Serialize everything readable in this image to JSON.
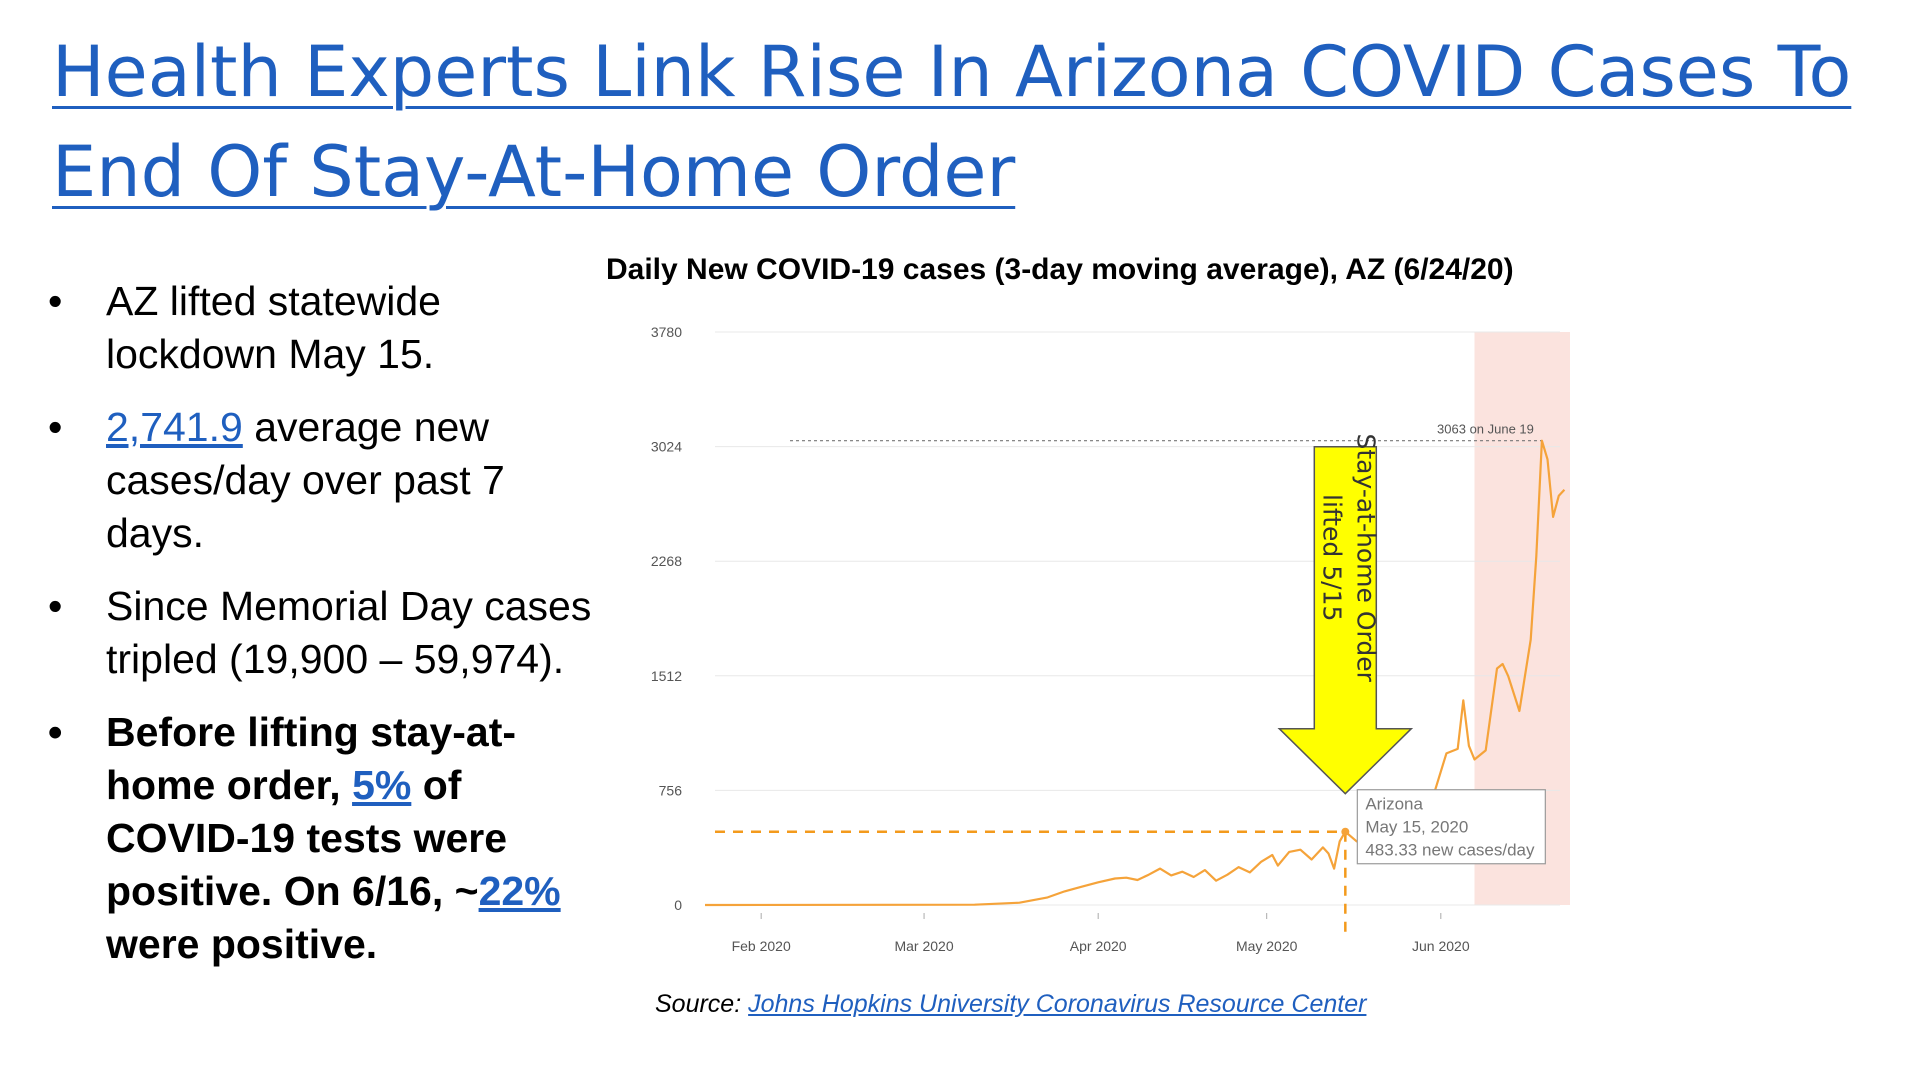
{
  "slide": {
    "title": "Health Experts Link Rise In Arizona COVID Cases To End Of Stay-At-Home Order",
    "bullets": [
      {
        "parts": [
          {
            "text": "AZ lifted statewide lockdown May 15."
          }
        ]
      },
      {
        "parts": [
          {
            "text": "2,741.9",
            "link": true
          },
          {
            "text": " average new cases/day over past 7 days."
          }
        ]
      },
      {
        "parts": [
          {
            "text": "Since Memorial Day cases tripled (19,900 – 59,974)."
          }
        ]
      },
      {
        "bold": true,
        "parts": [
          {
            "text": "Before lifting stay-at-home order, "
          },
          {
            "text": "5%",
            "link": true
          },
          {
            "text": " of COVID-19 tests were positive. On 6/16, ~"
          },
          {
            "text": "22%",
            "link": true
          },
          {
            "text": " were positive."
          }
        ]
      }
    ],
    "source_prefix": "Source:",
    "source_link": "Johns Hopkins University Coronavirus Resource Center"
  },
  "chart_data": {
    "type": "line",
    "title": "Daily New COVID-19 cases (3-day moving average), AZ (6/24/20)",
    "xlabel": "",
    "ylabel": "",
    "y_ticks": [
      0,
      756,
      1512,
      2268,
      3024,
      3780
    ],
    "ylim": [
      0,
      3780
    ],
    "x_range": [
      "2020-01-22",
      "2020-06-24"
    ],
    "x_ticks": [
      {
        "date": "2020-02-01",
        "label": "Feb 2020"
      },
      {
        "date": "2020-03-01",
        "label": "Mar 2020"
      },
      {
        "date": "2020-04-01",
        "label": "Apr 2020"
      },
      {
        "date": "2020-05-01",
        "label": "May 2020"
      },
      {
        "date": "2020-06-01",
        "label": "Jun 2020"
      }
    ],
    "grid": true,
    "series": [
      {
        "color": "#f5a33a",
        "points": [
          [
            "2020-01-22",
            0
          ],
          [
            "2020-03-10",
            2
          ],
          [
            "2020-03-18",
            15
          ],
          [
            "2020-03-23",
            50
          ],
          [
            "2020-03-26",
            90
          ],
          [
            "2020-03-29",
            120
          ],
          [
            "2020-04-01",
            150
          ],
          [
            "2020-04-04",
            175
          ],
          [
            "2020-04-06",
            180
          ],
          [
            "2020-04-08",
            165
          ],
          [
            "2020-04-10",
            200
          ],
          [
            "2020-04-12",
            240
          ],
          [
            "2020-04-14",
            195
          ],
          [
            "2020-04-16",
            220
          ],
          [
            "2020-04-18",
            185
          ],
          [
            "2020-04-20",
            230
          ],
          [
            "2020-04-22",
            160
          ],
          [
            "2020-04-24",
            200
          ],
          [
            "2020-04-26",
            250
          ],
          [
            "2020-04-28",
            215
          ],
          [
            "2020-04-30",
            285
          ],
          [
            "2020-05-02",
            330
          ],
          [
            "2020-05-03",
            260
          ],
          [
            "2020-05-05",
            350
          ],
          [
            "2020-05-07",
            365
          ],
          [
            "2020-05-09",
            300
          ],
          [
            "2020-05-11",
            380
          ],
          [
            "2020-05-12",
            340
          ],
          [
            "2020-05-13",
            240
          ],
          [
            "2020-05-14",
            420
          ],
          [
            "2020-05-15",
            483.33
          ],
          [
            "2020-05-17",
            420
          ],
          [
            "2020-05-19",
            380
          ],
          [
            "2020-05-21",
            440
          ],
          [
            "2020-05-23",
            500
          ],
          [
            "2020-05-25",
            470
          ],
          [
            "2020-05-27",
            520
          ],
          [
            "2020-05-29",
            600
          ],
          [
            "2020-05-31",
            760
          ],
          [
            "2020-06-02",
            1000
          ],
          [
            "2020-06-04",
            1030
          ],
          [
            "2020-06-05",
            1350
          ],
          [
            "2020-06-06",
            1050
          ],
          [
            "2020-06-07",
            960
          ],
          [
            "2020-06-09",
            1020
          ],
          [
            "2020-06-11",
            1560
          ],
          [
            "2020-06-12",
            1590
          ],
          [
            "2020-06-13",
            1510
          ],
          [
            "2020-06-15",
            1280
          ],
          [
            "2020-06-17",
            1750
          ],
          [
            "2020-06-18",
            2300
          ],
          [
            "2020-06-19",
            3063
          ],
          [
            "2020-06-20",
            2940
          ],
          [
            "2020-06-21",
            2560
          ],
          [
            "2020-06-22",
            2700
          ],
          [
            "2020-06-23",
            2740
          ]
        ]
      }
    ],
    "peak_annotation": {
      "date": "2020-06-19",
      "value": 3063,
      "text": "3063 on June 19"
    },
    "highlight_range": [
      "2020-06-07",
      "2020-06-24"
    ],
    "marker": {
      "date": "2020-05-15",
      "value": 483.33
    },
    "tooltip": {
      "lines": [
        "Arizona",
        "May 15, 2020",
        "483.33 new cases/day"
      ]
    },
    "arrow_label": [
      "Stay-at-home Order",
      "lifted 5/15"
    ],
    "colors": {
      "line": "#f5a33a",
      "highlight": "#fbe3de",
      "arrow": "#ffff00",
      "dashed": "#f39a1c"
    }
  }
}
